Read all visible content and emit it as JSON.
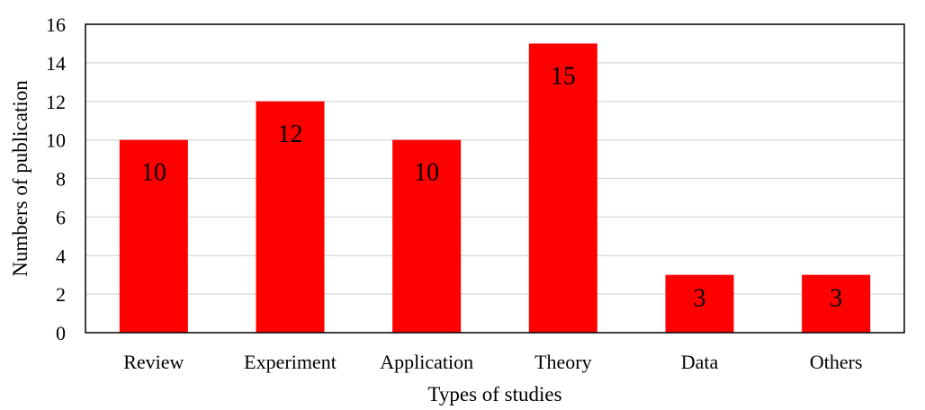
{
  "chart_data": {
    "type": "bar",
    "categories": [
      "Review",
      "Experiment",
      "Application",
      "Theory",
      "Data",
      "Others"
    ],
    "values": [
      10,
      12,
      10,
      15,
      3,
      3
    ],
    "data_labels": [
      "10",
      "12",
      "10",
      "15",
      "3",
      "3"
    ],
    "title": "",
    "xlabel": "Types of studies",
    "ylabel": "Numbers of publication",
    "ylim": [
      0,
      16
    ],
    "yticks": [
      "0",
      "2",
      "4",
      "6",
      "8",
      "10",
      "12",
      "14",
      "16"
    ],
    "grid": true,
    "legend": "none",
    "bar_color": "#ff0000",
    "grid_color": "#d9d9d9",
    "frame_color": "#000000"
  }
}
